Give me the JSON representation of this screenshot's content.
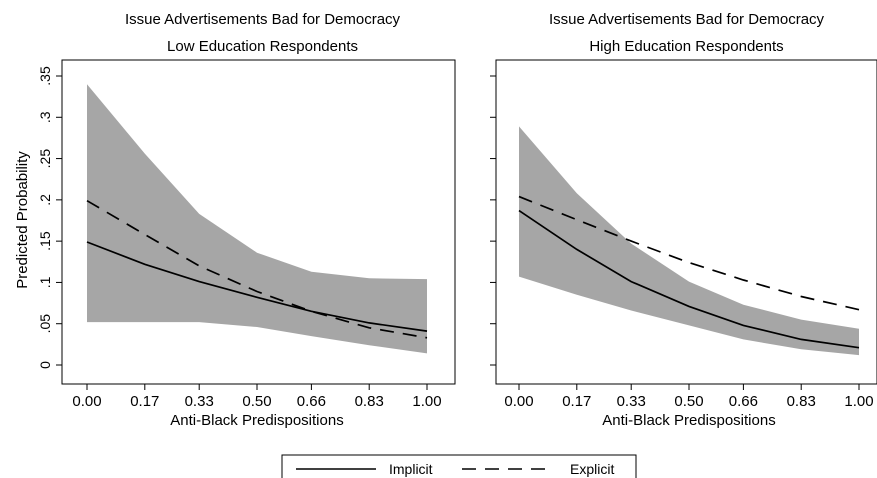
{
  "figure": {
    "y_axis_title": "Predicted Probability",
    "legend": [
      {
        "label": "Implicit",
        "style": "solid"
      },
      {
        "label": "Explicit",
        "style": "dashed"
      }
    ],
    "band_color": "#a6a6a6",
    "line_color": "#000000"
  },
  "chart_data": [
    {
      "type": "line",
      "title": "Issue Advertisements Bad for Democracy",
      "subtitle": "Low Education Respondents",
      "xlabel": "Anti-Black Predispositions",
      "x": [
        0.0,
        0.17,
        0.33,
        0.5,
        0.66,
        0.83,
        1.0
      ],
      "x_tick_labels": [
        "0.00",
        "0.17",
        "0.33",
        "0.50",
        "0.66",
        "0.83",
        "1.00"
      ],
      "y_ticks": [
        0,
        0.05,
        0.1,
        0.15,
        0.2,
        0.25,
        0.3,
        0.35
      ],
      "y_tick_labels": [
        "0",
        ".05",
        ".1",
        ".15",
        ".2",
        ".25",
        ".3",
        ".35"
      ],
      "ylim": [
        0,
        0.35
      ],
      "band": {
        "upper": [
          0.34,
          0.256,
          0.183,
          0.136,
          0.113,
          0.105,
          0.104
        ],
        "lower": [
          0.052,
          0.052,
          0.052,
          0.046,
          0.035,
          0.024,
          0.014
        ]
      },
      "series": [
        {
          "name": "Implicit",
          "style": "solid",
          "values": [
            0.149,
            0.122,
            0.101,
            0.082,
            0.065,
            0.051,
            0.041
          ]
        },
        {
          "name": "Explicit",
          "style": "dashed",
          "values": [
            0.199,
            0.158,
            0.12,
            0.089,
            0.065,
            0.045,
            0.033
          ]
        }
      ]
    },
    {
      "type": "line",
      "title": "Issue Advertisements Bad for Democracy",
      "subtitle": "High Education Respondents",
      "xlabel": "Anti-Black Predispositions",
      "x": [
        0.0,
        0.17,
        0.33,
        0.5,
        0.66,
        0.83,
        1.0
      ],
      "x_tick_labels": [
        "0.00",
        "0.17",
        "0.33",
        "0.50",
        "0.66",
        "0.83",
        "1.00"
      ],
      "y_ticks": [
        0,
        0.05,
        0.1,
        0.15,
        0.2,
        0.25,
        0.3,
        0.35
      ],
      "y_tick_labels": [],
      "ylim": [
        0,
        0.35
      ],
      "band": {
        "upper": [
          0.289,
          0.208,
          0.147,
          0.101,
          0.073,
          0.055,
          0.044
        ],
        "lower": [
          0.107,
          0.085,
          0.066,
          0.048,
          0.031,
          0.019,
          0.012
        ]
      },
      "series": [
        {
          "name": "Implicit",
          "style": "solid",
          "values": [
            0.187,
            0.14,
            0.101,
            0.071,
            0.048,
            0.031,
            0.021
          ]
        },
        {
          "name": "Explicit",
          "style": "dashed",
          "values": [
            0.204,
            0.176,
            0.15,
            0.124,
            0.103,
            0.083,
            0.067
          ]
        }
      ]
    }
  ]
}
